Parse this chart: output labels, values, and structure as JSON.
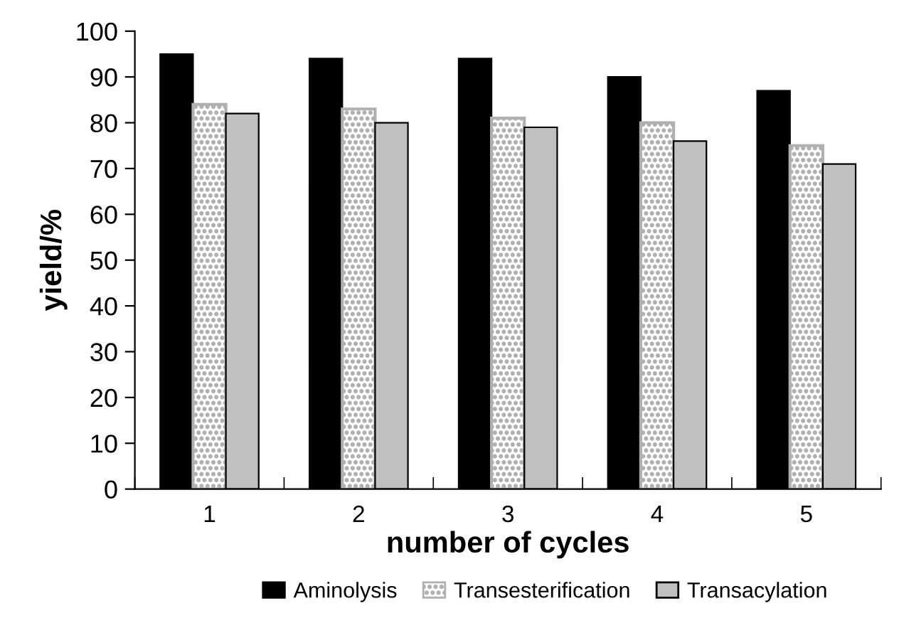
{
  "chart_data": {
    "type": "bar",
    "xlabel": "number of cycles",
    "ylabel": "yield/%",
    "categories": [
      "1",
      "2",
      "3",
      "4",
      "5"
    ],
    "series": [
      {
        "name": "Aminolysis",
        "color": "#000000",
        "values": [
          95,
          94,
          94,
          90,
          87
        ]
      },
      {
        "name": "Transesterification",
        "color": "#b0b0b0",
        "values": [
          84,
          83,
          81,
          80,
          75
        ]
      },
      {
        "name": "Transacylation",
        "color": "#c0c0c0",
        "values": [
          82,
          80,
          79,
          76,
          71
        ]
      }
    ],
    "ylim": [
      0,
      100
    ],
    "yticks": [
      0,
      10,
      20,
      30,
      40,
      50,
      60,
      70,
      80,
      90,
      100
    ],
    "grid": false,
    "legend": "bottom"
  }
}
